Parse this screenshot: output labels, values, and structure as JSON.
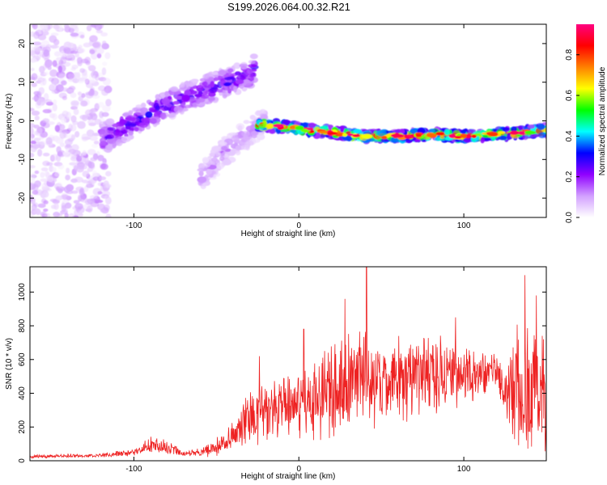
{
  "title": "S199.2026.064.00.32.R21",
  "chart_data": [
    {
      "type": "heatmap",
      "xlabel": "Height of straight line (km)",
      "ylabel": "Frequency (Hz)",
      "xlim": [
        -163,
        150
      ],
      "ylim": [
        -25,
        25
      ],
      "xticks": [
        -100,
        0,
        100
      ],
      "yticks": [
        -20,
        -10,
        0,
        10,
        20
      ],
      "colorbar": {
        "label": "Normalized spectral amplitude",
        "range": [
          0,
          0.95
        ],
        "ticks": [
          0,
          0.2,
          0.4,
          0.6,
          0.8
        ],
        "tick_labels": [
          "0.0",
          "0.2",
          "0.4",
          "0.6",
          "0.8"
        ],
        "colors": [
          "#ffffff",
          "#d2a0ff",
          "#9000ff",
          "#0000ff",
          "#00ffff",
          "#00ff00",
          "#ffff00",
          "#ff8000",
          "#ff0000",
          "#ff0080"
        ]
      },
      "features": [
        {
          "name": "noise",
          "x_range": [
            -163,
            -115
          ],
          "freq_range": [
            -25,
            25
          ],
          "amplitude": 0.1
        },
        {
          "name": "rising track",
          "x": [
            -120,
            -90,
            -70,
            -50,
            -30,
            -25
          ],
          "freq": [
            -5,
            2,
            6,
            9,
            12,
            15
          ],
          "amplitude": 0.3
        },
        {
          "name": "secondary track",
          "x": [
            -60,
            -45,
            -30,
            -20
          ],
          "freq": [
            -15,
            -8,
            -3,
            0
          ],
          "amplitude": 0.15
        },
        {
          "name": "main flat track",
          "x": [
            -25,
            0,
            20,
            40,
            60,
            80,
            100,
            120,
            135,
            150
          ],
          "freq": [
            -1,
            -2,
            -3,
            -4,
            -4,
            -3.5,
            -4,
            -3.5,
            -3,
            -2.5
          ],
          "amplitude": 0.9
        }
      ]
    },
    {
      "type": "line",
      "xlabel": "Height of straight line (km)",
      "ylabel": "SNR (10 * v/v)",
      "xlim": [
        -163,
        150
      ],
      "ylim": [
        0,
        1150
      ],
      "xticks": [
        -100,
        0,
        100
      ],
      "yticks": [
        0,
        200,
        400,
        600,
        800,
        1000
      ],
      "color": "#ee2222",
      "envelope": {
        "x": [
          -163,
          -120,
          -100,
          -90,
          -80,
          -70,
          -60,
          -50,
          -40,
          -30,
          -20,
          -10,
          0,
          10,
          20,
          30,
          40,
          50,
          60,
          70,
          80,
          90,
          100,
          110,
          120,
          125,
          130,
          140,
          150
        ],
        "mean": [
          25,
          30,
          50,
          90,
          80,
          40,
          50,
          80,
          150,
          250,
          300,
          300,
          330,
          380,
          420,
          470,
          490,
          480,
          480,
          500,
          520,
          500,
          490,
          520,
          530,
          350,
          420,
          400,
          350
        ],
        "amp": [
          12,
          15,
          25,
          60,
          50,
          20,
          30,
          60,
          120,
          200,
          230,
          230,
          250,
          280,
          300,
          320,
          350,
          300,
          280,
          280,
          280,
          250,
          200,
          160,
          120,
          200,
          450,
          500,
          450
        ]
      },
      "peaks": [
        {
          "x": 41,
          "value": 1150
        },
        {
          "x": 137,
          "value": 1100
        },
        {
          "x": 28,
          "value": 960
        },
        {
          "x": 144,
          "value": 980
        },
        {
          "x": -24,
          "value": 620
        },
        {
          "x": 3,
          "value": 780
        },
        {
          "x": 95,
          "value": 850
        }
      ]
    }
  ]
}
